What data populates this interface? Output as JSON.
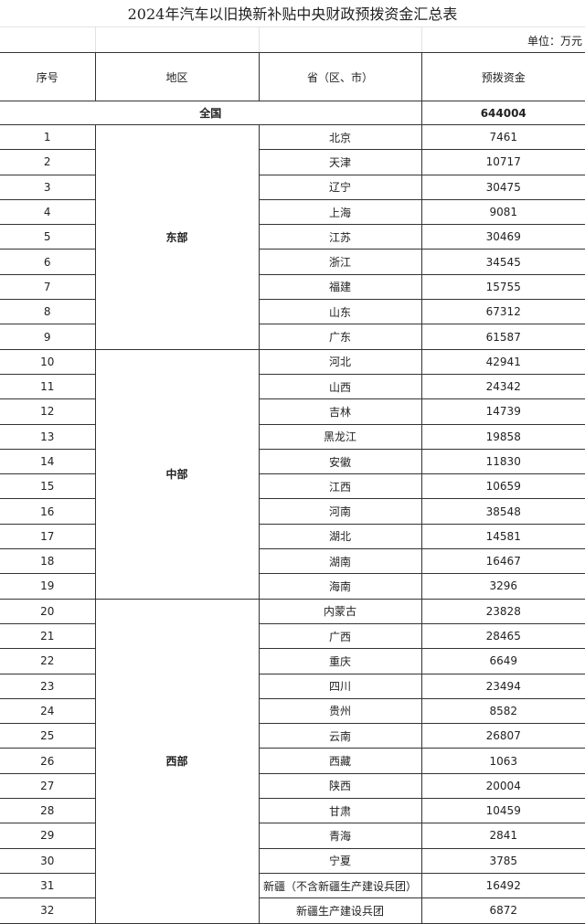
{
  "title": "2024年汽车以旧换新补贴中央财政预拨资金汇总表",
  "unit": "单位：万元",
  "headers": {
    "index": "序号",
    "region": "地区",
    "province": "省（区、市）",
    "funds": "预拨资金"
  },
  "total": {
    "label": "全国",
    "value": "644004"
  },
  "regions": [
    {
      "name": "东部",
      "rows": [
        [
          "1",
          "北京",
          "7461"
        ],
        [
          "2",
          "天津",
          "10717"
        ],
        [
          "3",
          "辽宁",
          "30475"
        ],
        [
          "4",
          "上海",
          "9081"
        ],
        [
          "5",
          "江苏",
          "30469"
        ],
        [
          "6",
          "浙江",
          "34545"
        ],
        [
          "7",
          "福建",
          "15755"
        ],
        [
          "8",
          "山东",
          "67312"
        ],
        [
          "9",
          "广东",
          "61587"
        ]
      ]
    },
    {
      "name": "中部",
      "rows": [
        [
          "10",
          "河北",
          "42941"
        ],
        [
          "11",
          "山西",
          "24342"
        ],
        [
          "12",
          "吉林",
          "14739"
        ],
        [
          "13",
          "黑龙江",
          "19858"
        ],
        [
          "14",
          "安徽",
          "11830"
        ],
        [
          "15",
          "江西",
          "10659"
        ],
        [
          "16",
          "河南",
          "38548"
        ],
        [
          "17",
          "湖北",
          "14581"
        ],
        [
          "18",
          "湖南",
          "16467"
        ],
        [
          "19",
          "海南",
          "3296"
        ]
      ]
    },
    {
      "name": "西部",
      "rows": [
        [
          "20",
          "内蒙古",
          "23828"
        ],
        [
          "21",
          "广西",
          "28465"
        ],
        [
          "22",
          "重庆",
          "6649"
        ],
        [
          "23",
          "四川",
          "23494"
        ],
        [
          "24",
          "贵州",
          "8582"
        ],
        [
          "25",
          "云南",
          "26807"
        ],
        [
          "26",
          "西藏",
          "1063"
        ],
        [
          "27",
          "陕西",
          "20004"
        ],
        [
          "28",
          "甘肃",
          "10459"
        ],
        [
          "29",
          "青海",
          "2841"
        ],
        [
          "30",
          "宁夏",
          "3785"
        ],
        [
          "31",
          "新疆（不含新疆生产建设兵团）",
          "16492"
        ],
        [
          "32",
          "新疆生产建设兵团",
          "6872"
        ]
      ]
    }
  ]
}
